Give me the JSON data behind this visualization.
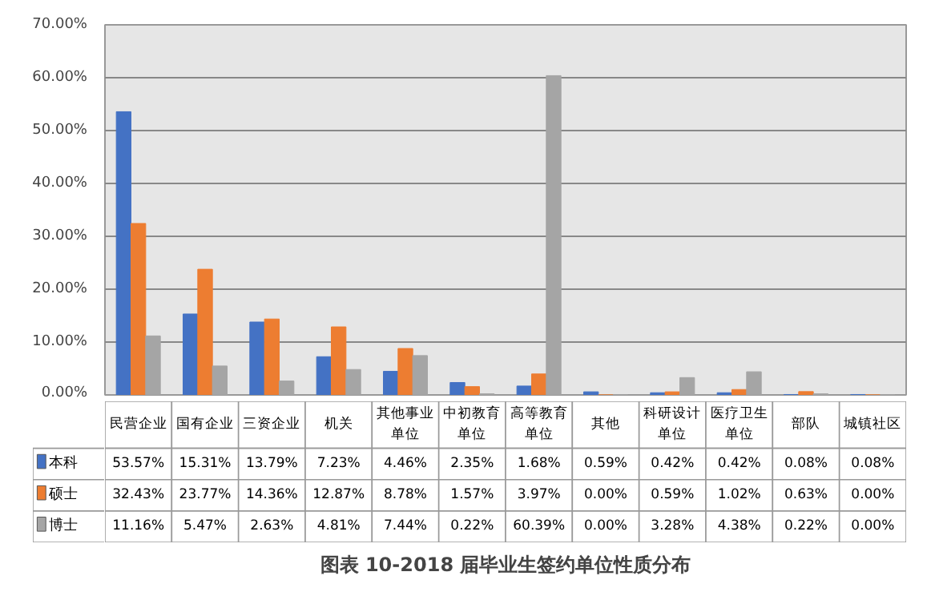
{
  "chart_data": {
    "type": "bar",
    "title": "图表 10-2018 届毕业生签约单位性质分布",
    "categories": [
      "民营企业",
      "国有企业",
      "三资企业",
      "机关",
      "其他事业单位",
      "中初教育单位",
      "高等教育单位",
      "其他",
      "科研设计单位",
      "医疗卫生单位",
      "部队",
      "城镇社区"
    ],
    "series": [
      {
        "name": "本科",
        "color": "#4472c4",
        "values": [
          53.57,
          15.31,
          13.79,
          7.23,
          4.46,
          2.35,
          1.68,
          0.59,
          0.42,
          0.42,
          0.08,
          0.08
        ],
        "value_labels": [
          "53.57%",
          "15.31%",
          "13.79%",
          "7.23%",
          "4.46%",
          "2.35%",
          "1.68%",
          "0.59%",
          "0.42%",
          "0.42%",
          "0.08%",
          "0.08%"
        ]
      },
      {
        "name": "硕士",
        "color": "#ed7d31",
        "values": [
          32.43,
          23.77,
          14.36,
          12.87,
          8.78,
          1.57,
          3.97,
          0.0,
          0.59,
          1.02,
          0.63,
          0.0
        ],
        "value_labels": [
          "32.43%",
          "23.77%",
          "14.36%",
          "12.87%",
          "8.78%",
          "1.57%",
          "3.97%",
          "0.00%",
          "0.59%",
          "1.02%",
          "0.63%",
          "0.00%"
        ]
      },
      {
        "name": "博士",
        "color": "#a5a5a5",
        "values": [
          11.16,
          5.47,
          2.63,
          4.81,
          7.44,
          0.22,
          60.39,
          0.0,
          3.28,
          4.38,
          0.22,
          0.0
        ],
        "value_labels": [
          "11.16%",
          "5.47%",
          "2.63%",
          "4.81%",
          "7.44%",
          "0.22%",
          "60.39%",
          "0.00%",
          "3.28%",
          "4.38%",
          "0.22%",
          "0.00%"
        ]
      }
    ],
    "ylim": [
      0,
      70
    ],
    "yticks": [
      {
        "value": 0,
        "label": "0.00%"
      },
      {
        "value": 10,
        "label": "10.00%"
      },
      {
        "value": 20,
        "label": "20.00%"
      },
      {
        "value": 30,
        "label": "30.00%"
      },
      {
        "value": 40,
        "label": "40.00%"
      },
      {
        "value": 50,
        "label": "50.00%"
      },
      {
        "value": 60,
        "label": "60.00%"
      },
      {
        "value": 70,
        "label": "70.00%"
      }
    ],
    "grid": "y",
    "legend": "left"
  }
}
